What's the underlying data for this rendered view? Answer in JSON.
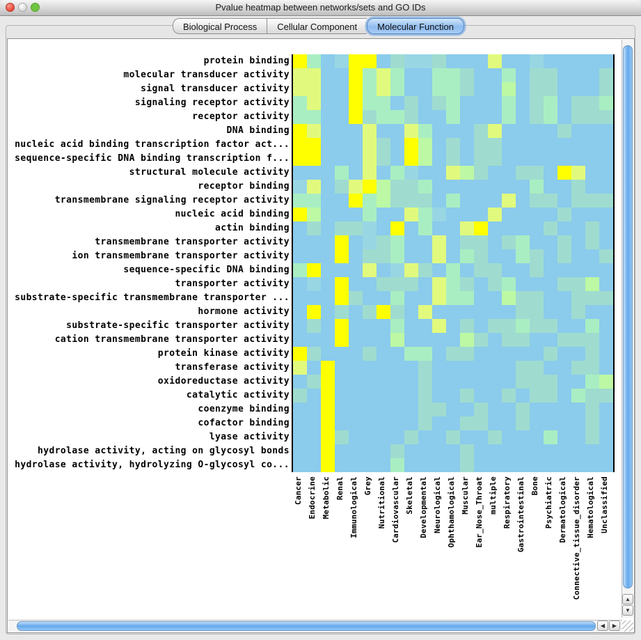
{
  "window": {
    "title": "Pvalue heatmap between networks/sets and GO IDs"
  },
  "tabs": [
    {
      "label": "Biological Process",
      "selected": false
    },
    {
      "label": "Cellular Component",
      "selected": false
    },
    {
      "label": "Molecular Function",
      "selected": true
    }
  ],
  "heatmap": {
    "rows": [
      "protein binding",
      "molecular transducer activity",
      "signal transducer activity",
      "signaling receptor activity",
      "receptor activity",
      "DNA binding",
      "nucleic acid binding transcription factor act...",
      "sequence-specific DNA binding transcription f...",
      "structural molecule activity",
      "receptor binding",
      "transmembrane signaling receptor activity",
      "nucleic acid binding",
      "actin binding",
      "transmembrane transporter activity",
      "ion transmembrane transporter activity",
      "sequence-specific DNA binding",
      "transporter activity",
      "substrate-specific transmembrane transporter ...",
      "hormone activity",
      "substrate-specific transporter activity",
      "cation transmembrane transporter activity",
      "protein kinase activity",
      "transferase activity",
      "oxidoreductase activity",
      "catalytic activity",
      "coenzyme binding",
      "cofactor binding",
      "lyase activity",
      "hydrolase activity, acting on glycosyl bonds",
      "hydrolase activity, hydrolyzing O-glycosyl co..."
    ],
    "columns": [
      "Cancer",
      "Endocrine",
      "Metabolic",
      "Renal",
      "Immunological",
      "Grey",
      "Nutritional",
      "Cardiovascular",
      "Skeletal",
      "Developmental",
      "Neurological",
      "Ophthamological",
      "Muscular",
      "Ear_Nose_Throat",
      "multiple",
      "Respiratory",
      "Gastrointestinal",
      "Bone",
      "Psychiatric",
      "Dermatological",
      "Connective_tissue_disorder",
      "Hematological",
      "Unclassified"
    ],
    "palette": {
      "Y": "#ffff00",
      "y": "#e1fa7d",
      "L": "#bdf8a4",
      "g": "#a9eec2",
      "t": "#9fdccf",
      "s": "#98d6e4",
      "b": "#8bcbec"
    },
    "legend": "Y=lowest pvalue (yellow) through b=highest pvalue (blue)",
    "grid": [
      "YgbsYYbtsstbbbybbsbbbbb",
      "yybbYgygbbggtbbgbttbbbt",
      "yybbYgygbbggtbbLbttbbbt",
      "gybbYggbtbtgbbbgbtgbttg",
      "ggbbYtggtbbgbbbgbtgbttt",
      "Yybbbybbygbbbtybbbbtbbb",
      "YYbbbytbYLbtbttbbbbbbbb",
      "YYbbbytbYLbtbttbbbbbbbb",
      "bbbgbybgsbbyLtbbttbYybb",
      "sybtyYLttgbbbbbbbgbbtbb",
      "ggbbYgLtttbgbbbybttbttt",
      "YLbbbgbbygsbbbybbbbtbbb",
      "btbttsbYbgbbyYbbbbtbbtb",
      "bbbYbstgbbybttbtgbbtbtb",
      "bbbYbttgbbybgtbbgtbtbbt",
      "gYbbbybsytbgbttbbtbbbbb",
      "bsbYbbtttbygtbtgbbbttLb",
      "bbbYtbbgbbyggbbLttbbttt",
      "bYbtbtYtbybbbbbbttbbtbb",
      "btbYbbbgbbybtbttgttbbgb",
      "bbbYbbbLbbbbLtbttbbtttb",
      "Ytbbbtbbggbttbbbbbtbbtb",
      "ybYbbbbbbtbbbbbbttbbttb",
      "btYbbbbbbtbbbbbbtttbbgL",
      "tbYbbbbbbtbbtbbtbttbgtt",
      "bbYbbbbbbttbbtbbtbbbbtb",
      "bbYbbbbbbtbbttbbtbbbbtb",
      "bbYtbbbbtbbtbbtbbbgbbtb",
      "bbYbbbbtbbbbtbbbbbbbbbb",
      "bbYbbbbgbbbbtbbbbbbbbbb"
    ]
  },
  "scrollbars": {
    "up_arrow": "▲",
    "down_arrow": "▼",
    "left_arrow": "◀",
    "right_arrow": "▶"
  }
}
